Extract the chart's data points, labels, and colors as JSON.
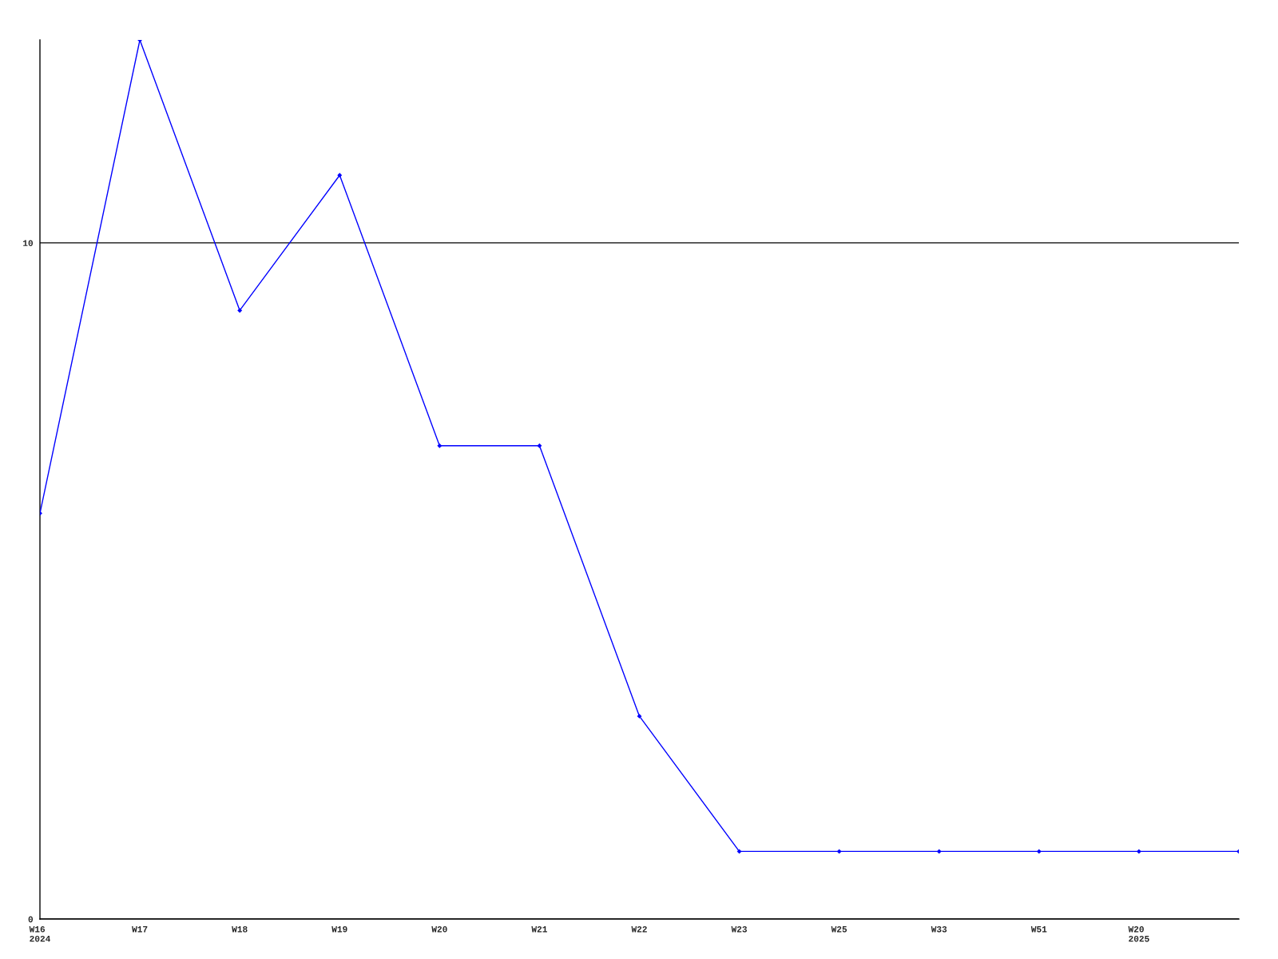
{
  "chart_data": {
    "type": "line",
    "categories": [
      "W16\n2024",
      "W17",
      "W18",
      "W19",
      "W20",
      "W21",
      "W22",
      "W23",
      "W25",
      "W33",
      "W51",
      "W20\n2025",
      null
    ],
    "series": [
      {
        "color": "#0000ff",
        "values": [
          6,
          13,
          9,
          11,
          7,
          7,
          3,
          1,
          1,
          1,
          1,
          1,
          1
        ]
      }
    ],
    "ylim": [
      0,
      13
    ],
    "yticks": [
      0,
      10
    ],
    "grid": "y",
    "marker": "diamond",
    "line_style": "solid"
  }
}
